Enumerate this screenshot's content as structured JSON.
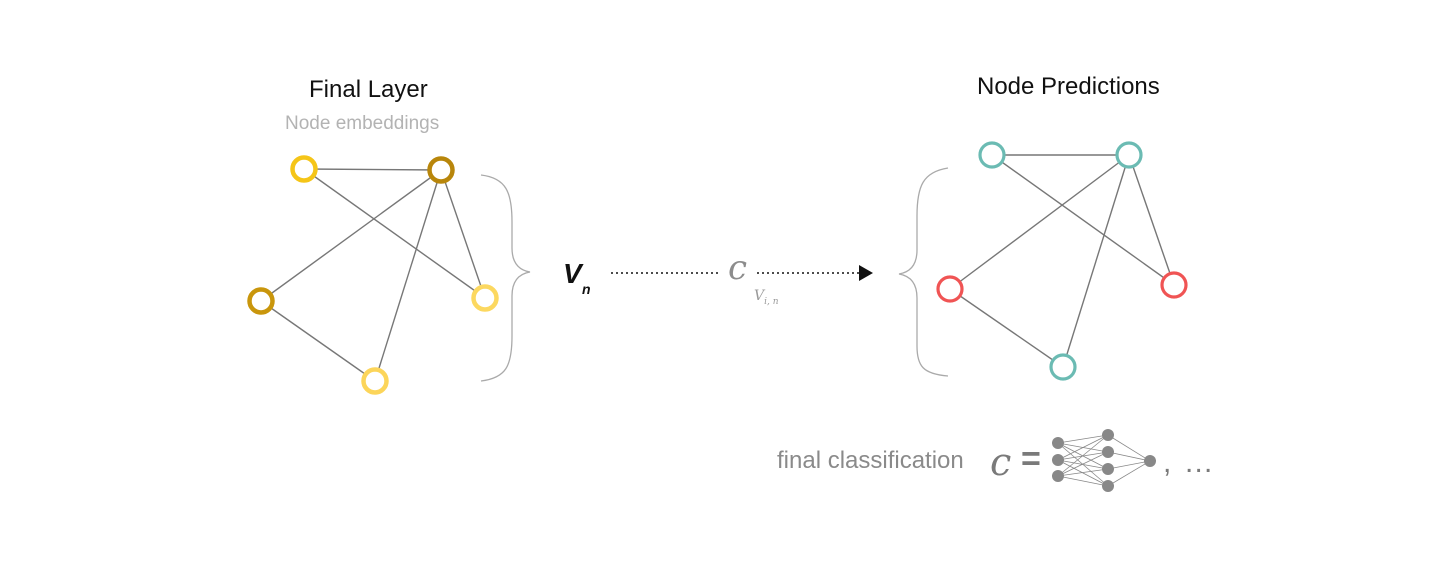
{
  "left_graph": {
    "title": "Final Layer",
    "subtitle": "Node embeddings",
    "node_colors": [
      "#f5c518",
      "#b8860b",
      "#c9960c",
      "#fcd860",
      "#fcd55a"
    ]
  },
  "right_graph": {
    "title": "Node Predictions",
    "node_colors": [
      "#6bbbb3",
      "#6bbbb3",
      "#f05454",
      "#f05454",
      "#6bbbb3"
    ]
  },
  "mapping": {
    "input_symbol": "V",
    "input_subscript": "n",
    "function_symbol": "c",
    "function_subscript": "V",
    "function_subscript_index": "i, n"
  },
  "footer": {
    "text": "final classification",
    "symbol": "c",
    "equals": "=",
    "tail": ", …"
  },
  "colors": {
    "edge": "#777777",
    "brace": "#aaaaaa",
    "arrow": "#111111",
    "network": "#888888"
  }
}
